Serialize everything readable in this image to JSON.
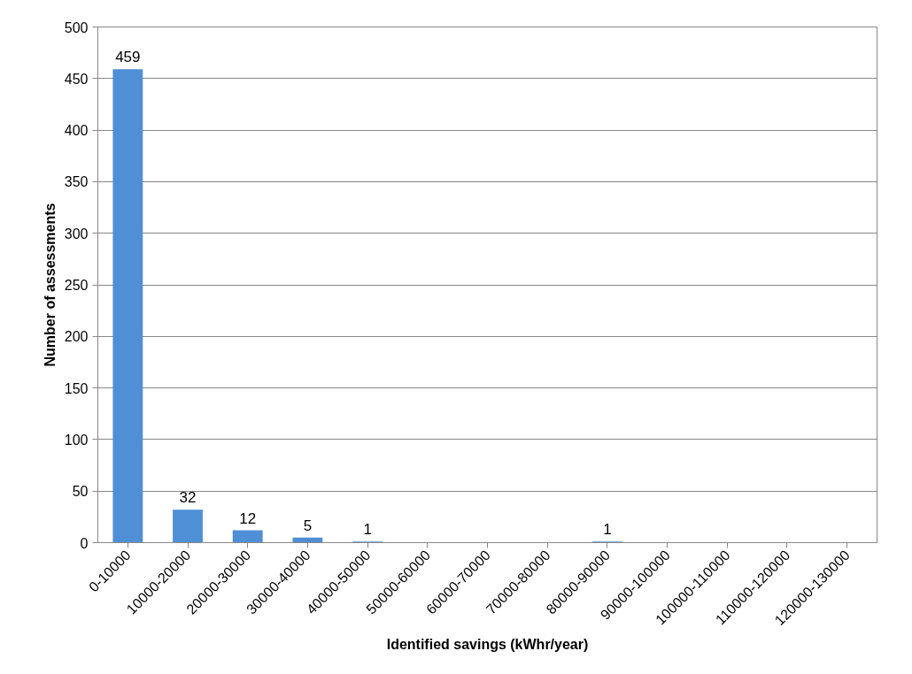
{
  "chart_data": {
    "type": "bar",
    "xlabel": "Identified savings (kWhr/year)",
    "ylabel": "Number of assessments",
    "categories": [
      "0-10000",
      "10000-20000",
      "20000-30000",
      "30000-40000",
      "40000-50000",
      "50000-60000",
      "60000-70000",
      "70000-80000",
      "80000-90000",
      "90000-100000",
      "100000-110000",
      "110000-120000",
      "120000-130000"
    ],
    "values": [
      459,
      32,
      12,
      5,
      1,
      0,
      0,
      0,
      1,
      0,
      0,
      0,
      0
    ],
    "value_labels": [
      "459",
      "32",
      "12",
      "5",
      "1",
      null,
      null,
      null,
      "1",
      null,
      null,
      null,
      null
    ],
    "color": "#4f8fd6",
    "ylim": [
      0,
      500
    ],
    "yticks": [
      0,
      50,
      100,
      150,
      200,
      250,
      300,
      350,
      400,
      450,
      500
    ],
    "grid": "y"
  }
}
